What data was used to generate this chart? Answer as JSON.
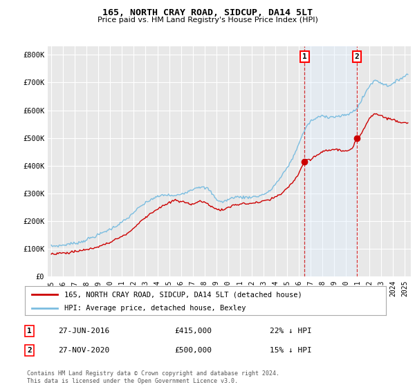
{
  "title": "165, NORTH CRAY ROAD, SIDCUP, DA14 5LT",
  "subtitle": "Price paid vs. HM Land Registry's House Price Index (HPI)",
  "ylabel_ticks": [
    "£0",
    "£100K",
    "£200K",
    "£300K",
    "£400K",
    "£500K",
    "£600K",
    "£700K",
    "£800K"
  ],
  "ytick_vals": [
    0,
    100000,
    200000,
    300000,
    400000,
    500000,
    600000,
    700000,
    800000
  ],
  "ylim": [
    0,
    830000
  ],
  "xlim_start": 1994.7,
  "xlim_end": 2025.5,
  "hpi_color": "#7BBDE0",
  "price_color": "#cc0000",
  "shade_color": "#ddeeff",
  "marker1_date": 2016.49,
  "marker1_price": 415000,
  "marker1_label": "27-JUN-2016",
  "marker1_pct": "22% ↓ HPI",
  "marker2_date": 2020.91,
  "marker2_price": 500000,
  "marker2_label": "27-NOV-2020",
  "marker2_pct": "15% ↓ HPI",
  "legend_line1": "165, NORTH CRAY ROAD, SIDCUP, DA14 5LT (detached house)",
  "legend_line2": "HPI: Average price, detached house, Bexley",
  "footnote": "Contains HM Land Registry data © Crown copyright and database right 2024.\nThis data is licensed under the Open Government Licence v3.0.",
  "background_color": "#ffffff",
  "plot_bg_color": "#e8e8e8",
  "grid_color": "#ffffff",
  "annotation1_label": "1",
  "annotation2_label": "2",
  "xtick_years": [
    1995,
    1996,
    1997,
    1998,
    1999,
    2000,
    2001,
    2002,
    2003,
    2004,
    2005,
    2006,
    2007,
    2008,
    2009,
    2010,
    2011,
    2012,
    2013,
    2014,
    2015,
    2016,
    2017,
    2018,
    2019,
    2020,
    2021,
    2022,
    2023,
    2024,
    2025
  ]
}
